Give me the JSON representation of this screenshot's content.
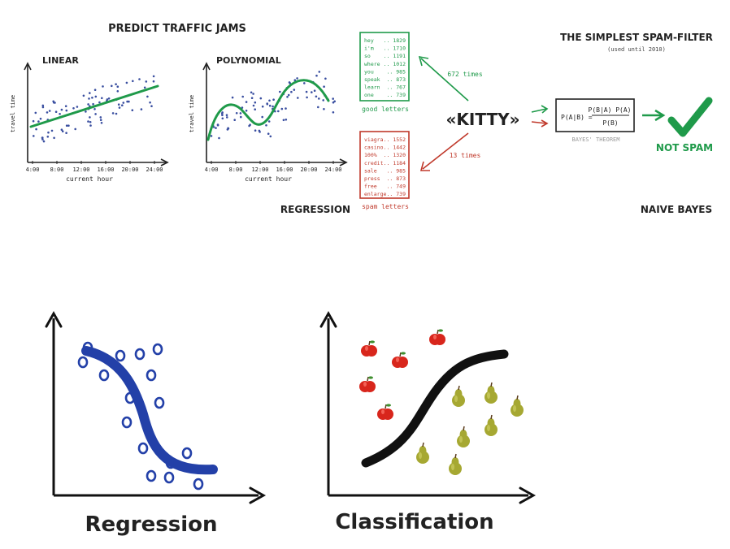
{
  "top_left": {
    "title": "PREDICT TRAFFIC JAMS",
    "linear_label": "LINEAR",
    "poly_label": "POLYNOMIAL",
    "y_axis_label": "travel time",
    "x_axis_label": "current hour",
    "x_ticks": [
      "4:00",
      "8:00",
      "12:00",
      "16:00",
      "20:00",
      "24:00"
    ],
    "section_label": "REGRESSION"
  },
  "good_letters": {
    "caption": "good letters",
    "words": [
      "hey",
      "i'm",
      "so",
      "where",
      "you",
      "speak",
      "learn",
      "one"
    ],
    "counts": [
      "1829",
      "1710",
      "1191",
      "1012",
      "985",
      "873",
      "767",
      "739"
    ]
  },
  "spam_letters": {
    "caption": "spam letters",
    "words": [
      "viagra",
      "casino",
      "100%",
      "credit",
      "sale",
      "press",
      "free",
      "enlarge"
    ],
    "counts": [
      "1552",
      "1442",
      "1320",
      "1184",
      "985",
      "873",
      "749",
      "739"
    ]
  },
  "kitty": {
    "word": "«KITTY»",
    "good_times": "672 times",
    "spam_times": "13 times"
  },
  "spam_filter": {
    "title": "THE SIMPLEST SPAM-FILTER",
    "subtitle": "(used until 2010)",
    "formula_lhs": "P(A|B) =",
    "formula_num": "P(B|A) P(A)",
    "formula_den": "P(B)",
    "theorem_label": "BAYES' THEOREM",
    "verdict": "NOT SPAM",
    "section_label": "NAIVE BAYES"
  },
  "bottom": {
    "regression_label": "Regression",
    "classification_label": "Classification"
  },
  "colors": {
    "ink": "#222222",
    "green": "#1f9a4a",
    "red": "#c0392b",
    "blue": "#2340a8",
    "dots": "#3a4fa0",
    "apple": "#d8261c",
    "pear": "#a6a832"
  }
}
